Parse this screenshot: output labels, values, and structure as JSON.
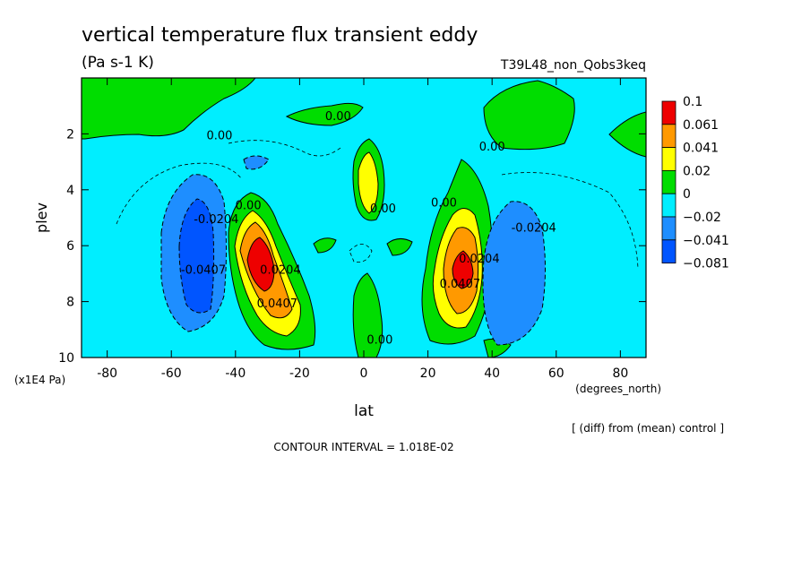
{
  "title": "vertical temperature flux transient eddy",
  "units": "(Pa s-1 K)",
  "run_id": "T39L48_non_Qobs3keq",
  "footer": {
    "diff_note": "[ (diff) from (mean) control ]",
    "contour_interval": "CONTOUR INTERVAL = 1.018E-02"
  },
  "chart_data": {
    "type": "heatmap",
    "title": "vertical temperature flux transient eddy",
    "xlabel": "lat",
    "x_units": "(degrees_north)",
    "ylabel": "plev",
    "y_units": "(x1E4 Pa)",
    "xlim": [
      -88,
      88
    ],
    "ylim": [
      10,
      0
    ],
    "x_ticks": [
      -80,
      -60,
      -40,
      -20,
      0,
      20,
      40,
      60,
      80
    ],
    "y_ticks": [
      2,
      4,
      6,
      8,
      10
    ],
    "grid": false,
    "legend_position": "right",
    "colorbar": {
      "levels": [
        "0.1",
        "0.061",
        "0.041",
        "0.02",
        "0",
        "−0.02",
        "−0.041",
        "−0.081"
      ],
      "colors": [
        "#ee0000",
        "#ff9900",
        "#ffff00",
        "#00dd00",
        "#00eeff",
        "#1e8eff",
        "#0055ff"
      ]
    },
    "contour_labels": [
      {
        "text": "0.00",
        "lat": -45,
        "plev": 2.2
      },
      {
        "text": "0.00",
        "lat": -8,
        "plev": 1.5
      },
      {
        "text": "0.00",
        "lat": 40,
        "plev": 2.6
      },
      {
        "text": "0.00",
        "lat": -36,
        "plev": 4.7
      },
      {
        "text": "0.00",
        "lat": 6,
        "plev": 4.8
      },
      {
        "text": "0.00",
        "lat": 25,
        "plev": 4.6
      },
      {
        "text": "0.00",
        "lat": 5,
        "plev": 9.5
      },
      {
        "text": "-0.0204",
        "lat": -46,
        "plev": 5.2
      },
      {
        "text": "-0.0407",
        "lat": -50,
        "plev": 7.0
      },
      {
        "text": "-0.0204",
        "lat": 53,
        "plev": 5.5
      },
      {
        "text": "0.0204",
        "lat": -26,
        "plev": 7.0
      },
      {
        "text": "0.0407",
        "lat": -27,
        "plev": 8.2
      },
      {
        "text": "0.0407",
        "lat": 30,
        "plev": 7.5
      },
      {
        "text": "0.0204",
        "lat": 36,
        "plev": 6.6
      }
    ]
  }
}
